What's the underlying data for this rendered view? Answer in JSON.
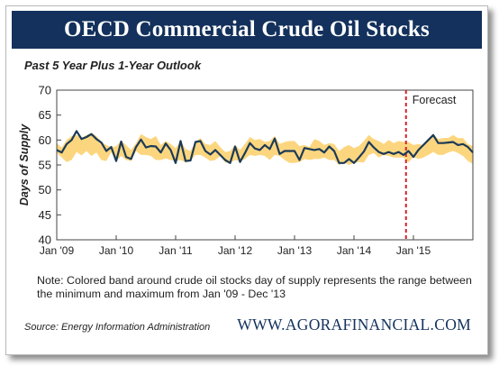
{
  "header": {
    "title": "OECD Commercial Crude Oil Stocks",
    "subtitle": "Past 5 Year Plus 1-Year Outlook"
  },
  "footer": {
    "note": "Note: Colored band around crude oil stocks day of supply represents the range between the minimum and maximum from Jan '09 - Dec '13",
    "source": "Source: Energy Information Administration",
    "website": "WWW.AGORAFINANCIAL.COM"
  },
  "colors": {
    "title_bar": "#13315c",
    "line": "#1b3a57",
    "band": "#fcd67f",
    "forecast_line": "#d62229"
  },
  "chart_data": {
    "type": "line",
    "title": "OECD Commercial Crude Oil Stocks",
    "subtitle": "Past 5 Year Plus 1-Year Outlook",
    "xlabel": "",
    "ylabel": "Days of Supply",
    "ylim": [
      40,
      70
    ],
    "yticks": [
      40,
      45,
      50,
      55,
      60,
      65,
      70
    ],
    "xlim": [
      0,
      84
    ],
    "xticks": [
      {
        "x": 0,
        "label": "Jan '09"
      },
      {
        "x": 12,
        "label": "Jan '10"
      },
      {
        "x": 24,
        "label": "Jan '11"
      },
      {
        "x": 36,
        "label": "Jan '12"
      },
      {
        "x": 48,
        "label": "Jan '13"
      },
      {
        "x": 60,
        "label": "Jan '14"
      },
      {
        "x": 72,
        "label": "Jan '15"
      }
    ],
    "grid": false,
    "legend": "none",
    "annotations": [
      {
        "type": "vline",
        "x": 70.5,
        "label": "Forecast",
        "style": "dashed"
      }
    ],
    "series": [
      {
        "values": [
          58.0,
          57.5,
          59.2,
          60.0,
          61.8,
          60.2,
          60.6,
          61.2,
          60.2,
          59.5,
          57.8,
          58.6,
          55.8,
          59.7,
          56.6,
          56.2,
          58.6,
          60.1,
          58.5,
          58.8,
          58.7,
          57.5,
          59.3,
          58.0,
          55.4,
          59.8,
          55.8,
          55.9,
          59.6,
          59.8,
          57.8,
          57.1,
          58.0,
          57.0,
          56.0,
          55.4,
          58.7,
          55.6,
          57.4,
          59.4,
          58.3,
          58.0,
          59.0,
          58.2,
          60.3,
          57.2,
          57.8,
          57.8,
          57.8,
          56.0,
          58.4,
          58.2,
          58.0,
          58.2,
          57.5,
          58.7,
          57.8,
          55.4,
          55.4,
          56.2,
          55.4,
          56.5,
          57.7,
          59.6,
          58.5,
          57.6,
          57.2,
          57.6,
          57.2,
          57.6,
          57.0,
          57.8,
          56.6,
          58.0,
          59.0,
          60.0,
          61.0,
          59.4,
          59.4,
          59.5,
          59.6,
          59.0,
          59.2,
          58.6,
          57.5
        ]
      },
      {
        "name": "Min-Max Band",
        "lower": [
          57.5,
          56.5,
          55.6,
          56.0,
          57.6,
          56.9,
          57.8,
          56.8,
          57.5,
          56.0,
          55.8,
          57.6,
          55.8,
          56.8,
          56.0,
          55.8,
          57.8,
          57.0,
          57.0,
          56.8,
          56.0,
          56.0,
          56.3,
          56.0,
          55.8,
          56.0,
          55.5,
          55.8,
          57.0,
          57.0,
          56.5,
          55.8,
          56.0,
          56.8,
          55.5,
          55.4,
          56.0,
          55.8,
          56.2,
          57.0,
          56.8,
          57.0,
          56.8,
          56.0,
          57.0,
          56.8,
          56.0,
          55.4,
          55.4,
          55.6,
          56.2,
          56.0,
          56.2,
          56.2,
          56.5,
          56.0,
          56.0,
          55.0,
          55.5,
          55.0,
          55.4,
          55.6,
          55.5,
          57.0,
          57.4,
          56.5,
          57.0,
          56.8,
          56.5,
          56.5,
          56.5,
          55.5,
          56.6,
          56.2,
          56.5,
          57.0,
          57.6,
          57.0,
          57.0,
          57.5,
          57.8,
          57.4,
          56.8,
          55.8,
          55.2
        ],
        "upper": [
          59.4,
          58.5,
          60.0,
          60.8,
          61.0,
          60.4,
          61.0,
          61.4,
          60.8,
          59.6,
          59.0,
          58.5,
          58.8,
          59.8,
          59.0,
          58.0,
          59.4,
          61.2,
          60.6,
          60.2,
          60.8,
          59.0,
          59.8,
          59.2,
          58.4,
          59.8,
          58.2,
          57.8,
          59.6,
          60.4,
          59.2,
          59.0,
          59.8,
          58.6,
          57.6,
          57.8,
          59.0,
          58.0,
          59.2,
          60.6,
          60.0,
          60.2,
          59.6,
          59.8,
          60.8,
          59.2,
          59.6,
          59.8,
          59.8,
          58.8,
          59.0,
          58.6,
          60.2,
          59.8,
          59.0,
          59.4,
          59.2,
          57.8,
          58.6,
          59.0,
          58.4,
          58.8,
          59.8,
          61.0,
          60.2,
          59.8,
          59.2,
          60.0,
          59.4,
          59.8,
          59.6,
          59.6,
          59.0,
          59.2,
          59.0,
          60.0,
          61.2,
          60.2,
          60.4,
          60.4,
          61.0,
          60.4,
          60.4,
          59.2,
          58.8
        ]
      }
    ]
  }
}
